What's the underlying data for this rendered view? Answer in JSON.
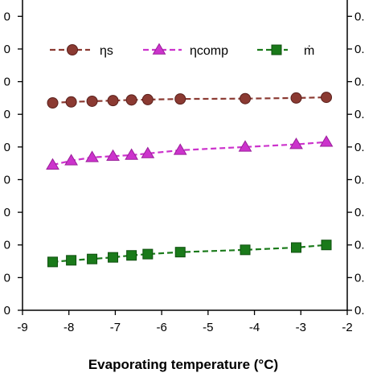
{
  "chart_data": {
    "type": "line",
    "xlabel": "Evaporating temperature (°C)",
    "xlim": [
      -9,
      -2
    ],
    "x_ticks": [
      "-9",
      "-8",
      "-7",
      "-6",
      "-5",
      "-4",
      "-3",
      "-2"
    ],
    "left_ylim": [
      0,
      9.5
    ],
    "left_tick_labels_visible": [
      "0",
      "0",
      "0",
      "0",
      "0",
      "0",
      "0",
      "0",
      "0",
      "0"
    ],
    "right_tick_labels_visible": [
      "0.",
      "0.",
      "0.",
      "0.",
      "0.",
      "0.",
      "0.",
      "0.",
      "0.",
      "0."
    ],
    "legend_placement": "top",
    "grid": false,
    "x": [
      -8.35,
      -7.95,
      -7.5,
      -7.05,
      -6.65,
      -6.3,
      -5.6,
      -4.2,
      -3.1,
      -2.45
    ],
    "series": [
      {
        "name": "ηs",
        "marker": "circle",
        "color": "#8B3A32",
        "values": [
          6.35,
          6.38,
          6.4,
          6.42,
          6.44,
          6.45,
          6.47,
          6.48,
          6.5,
          6.52
        ]
      },
      {
        "name": "ηcomp",
        "marker": "triangle",
        "color": "#CC33CC",
        "values": [
          4.45,
          4.58,
          4.68,
          4.72,
          4.75,
          4.8,
          4.9,
          5.0,
          5.08,
          5.15
        ]
      },
      {
        "name": "ṁ",
        "marker": "square",
        "color": "#1A7A1A",
        "values": [
          1.48,
          1.53,
          1.57,
          1.62,
          1.68,
          1.72,
          1.78,
          1.85,
          1.92,
          2.0
        ]
      }
    ]
  }
}
